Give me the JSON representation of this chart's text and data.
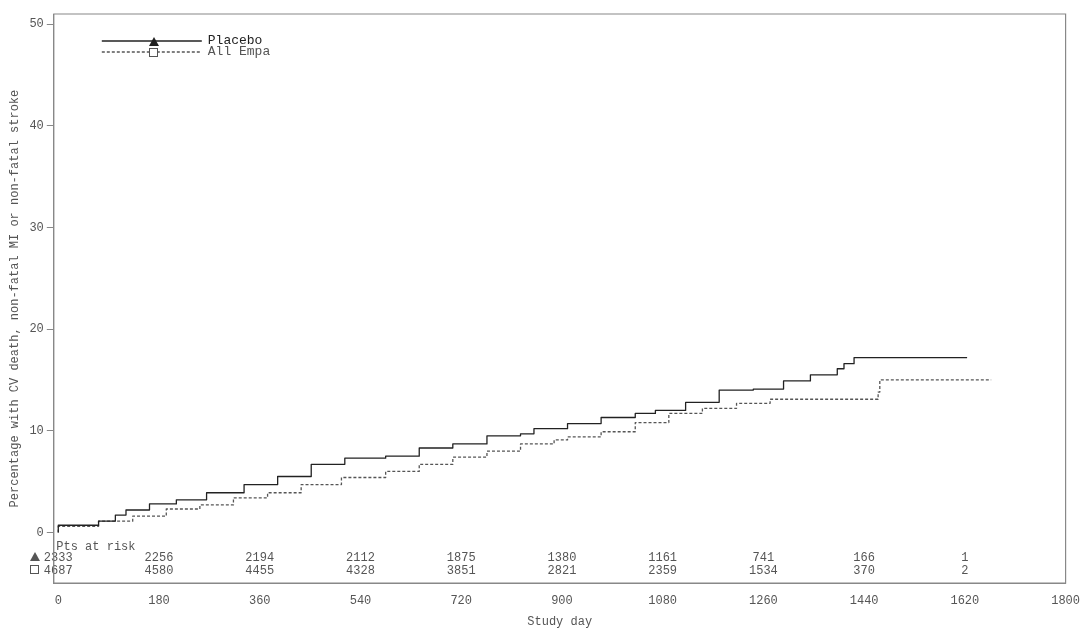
{
  "chart_data": {
    "type": "step",
    "xlabel": "Study day",
    "ylabel": "Percentage with CV death, non-fatal MI or non-fatal stroke",
    "xlim": [
      -8,
      1800
    ],
    "xticks": [
      0,
      180,
      360,
      540,
      720,
      900,
      1080,
      1260,
      1440,
      1620,
      1800
    ],
    "ylim": [
      -5,
      51
    ],
    "yticks": [
      0,
      10,
      20,
      30,
      40,
      50
    ],
    "grid": false,
    "legend": "top left",
    "marker": "none",
    "series": [
      {
        "name": "Placebo",
        "color": "#222222",
        "line_style": "solid",
        "x": [
          0,
          72,
          102,
          121,
          163,
          211,
          265,
          332,
          392,
          452,
          512,
          585,
          645,
          705,
          766,
          826,
          850,
          910,
          970,
          1031,
          1067,
          1121,
          1181,
          1242,
          1296,
          1344,
          1392,
          1404,
          1422,
          1465,
          1624
        ],
        "values": [
          0,
          0.7,
          1.1,
          1.7,
          2.2,
          2.8,
          3.2,
          3.9,
          4.7,
          5.5,
          6.7,
          7.3,
          7.5,
          8.3,
          8.7,
          9.5,
          9.7,
          10.2,
          10.7,
          11.3,
          11.7,
          12.0,
          12.8,
          14.0,
          14.1,
          14.9,
          15.5,
          16.1,
          16.6,
          17.2,
          17.2
        ]
      },
      {
        "name": "All Empa",
        "color": "#555555",
        "line_style": "dotted",
        "x": [
          0,
          72,
          133,
          193,
          253,
          313,
          374,
          434,
          506,
          585,
          645,
          705,
          766,
          826,
          886,
          910,
          970,
          1031,
          1091,
          1151,
          1212,
          1272,
          1362,
          1465,
          1468,
          1489,
          1667
        ],
        "values": [
          0,
          0.6,
          1.1,
          1.6,
          2.3,
          2.7,
          3.4,
          3.9,
          4.7,
          5.4,
          6.0,
          6.7,
          7.4,
          8.0,
          8.7,
          9.1,
          9.4,
          9.9,
          10.8,
          11.7,
          12.2,
          12.7,
          13.1,
          13.1,
          13.8,
          15.0,
          15.0
        ]
      }
    ],
    "annotations": [
      "Pts at risk",
      "2333",
      "2256",
      "2194",
      "2112",
      "1875",
      "1380",
      "1161",
      "741",
      "166",
      "1",
      "4687",
      "4580",
      "4455",
      "4328",
      "3851",
      "2821",
      "2359",
      "1534",
      "370",
      "2"
    ]
  }
}
